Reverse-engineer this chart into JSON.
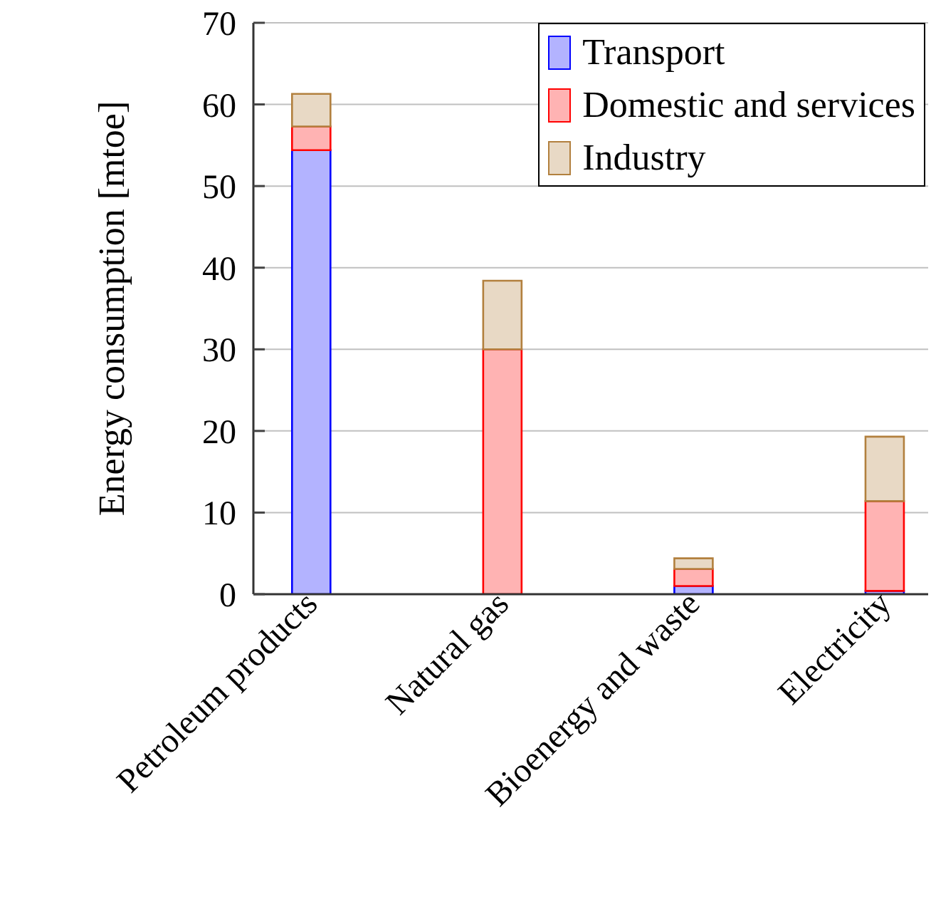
{
  "chart_data": {
    "type": "bar",
    "ylabel": "Energy consumption [mtoe]",
    "categories": [
      "Petroleum products",
      "Natural gas",
      "Bioenergy and waste",
      "Electricity"
    ],
    "stacked": true,
    "series": [
      {
        "name": "Transport",
        "color": "#b3b3ff",
        "values": [
          54.4,
          0,
          1.0,
          0.4
        ]
      },
      {
        "name": "Domestic and services",
        "color": "#ffb3b3",
        "values": [
          2.9,
          30.0,
          2.1,
          11.0
        ]
      },
      {
        "name": "Industry",
        "color": "#e8d9c5",
        "values": [
          4.0,
          8.4,
          1.3,
          7.9
        ]
      }
    ],
    "ylim": [
      0,
      70
    ],
    "yticks": [
      0,
      10,
      20,
      30,
      40,
      50,
      60,
      70
    ],
    "grid": "y",
    "legend": "top right"
  }
}
